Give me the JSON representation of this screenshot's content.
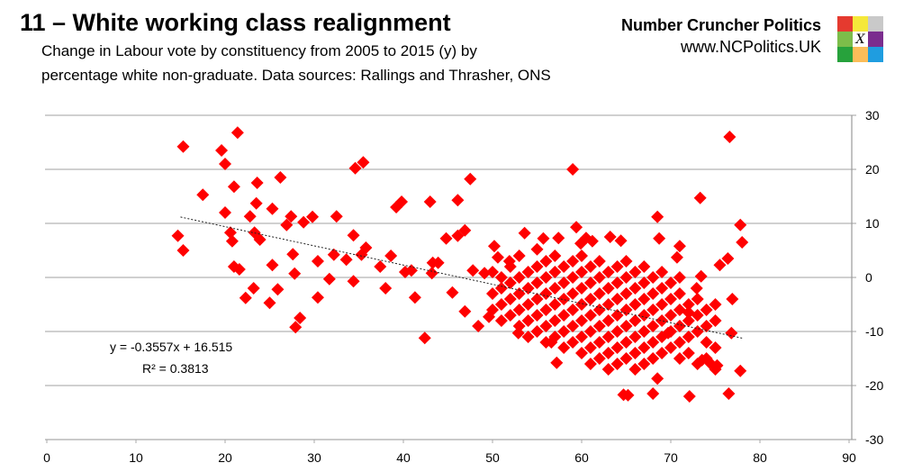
{
  "header": {
    "title": "11 – White working class realignment",
    "subtitle_line1": "Change in Labour vote by constituency from 2005 to 2015 (y) by",
    "subtitle_line2": "percentage white non-graduate. Data sources: Rallings and Thrasher, ONS"
  },
  "brand": {
    "name": "Number Cruncher Politics",
    "url": "www.NCPolitics.UK",
    "logo_mark": "X",
    "logo_colors": [
      "#e53a2f",
      "#f5e83a",
      "#c9c9c9",
      "#7cbd4a",
      "#ffffff",
      "#7b2d8e",
      "#27a23c",
      "#fbbd59",
      "#1f9de0"
    ]
  },
  "chart_data": {
    "type": "scatter",
    "xlim": [
      0,
      90
    ],
    "ylim": [
      -30,
      30
    ],
    "x_ticks": [
      "0",
      "10",
      "20",
      "30",
      "40",
      "50",
      "60",
      "70",
      "80",
      "90"
    ],
    "y_ticks": [
      "30",
      "20",
      "10",
      "0",
      "-10",
      "-20",
      "-30"
    ],
    "y_axis_side": "right",
    "grid": "horizontal",
    "marker": "diamond",
    "marker_color": "#ff0000",
    "trendline": {
      "slope": -0.3557,
      "intercept": 16.515,
      "x_range": [
        15,
        78
      ],
      "equation": "y = -0.3557x + 16.515",
      "r_squared": "R² = 0.3813",
      "style": "dotted"
    },
    "points": [
      [
        14.7,
        7.7
      ],
      [
        15.3,
        5
      ],
      [
        15.3,
        24.2
      ],
      [
        17.5,
        15.3
      ],
      [
        19.6,
        23.5
      ],
      [
        20,
        21
      ],
      [
        21.4,
        26.8
      ],
      [
        20,
        12
      ],
      [
        21,
        16.8
      ],
      [
        20.6,
        8.3
      ],
      [
        20.8,
        6.7
      ],
      [
        21,
        2
      ],
      [
        21.6,
        1.5
      ],
      [
        22.3,
        -3.8
      ],
      [
        23.2,
        -2
      ],
      [
        22.8,
        11.3
      ],
      [
        23.6,
        17.5
      ],
      [
        23.5,
        13.7
      ],
      [
        23.3,
        8.3
      ],
      [
        23.9,
        7
      ],
      [
        25.3,
        2.3
      ],
      [
        25,
        -4.7
      ],
      [
        25.3,
        12.7
      ],
      [
        26.2,
        18.5
      ],
      [
        25.9,
        -2.2
      ],
      [
        26.9,
        9.7
      ],
      [
        27.4,
        11.3
      ],
      [
        27.6,
        4.3
      ],
      [
        27.8,
        0.7
      ],
      [
        27.9,
        -9.2
      ],
      [
        28.4,
        -7.5
      ],
      [
        28.8,
        10.2
      ],
      [
        29.8,
        11.2
      ],
      [
        30.4,
        3
      ],
      [
        30.4,
        -3.7
      ],
      [
        31.7,
        -0.3
      ],
      [
        32.5,
        11.3
      ],
      [
        32.2,
        4.2
      ],
      [
        33.6,
        3.3
      ],
      [
        34.4,
        7.8
      ],
      [
        34.4,
        -0.7
      ],
      [
        34.6,
        20.2
      ],
      [
        35.5,
        21.3
      ],
      [
        35.3,
        4.2
      ],
      [
        35.8,
        5.5
      ],
      [
        37.4,
        2
      ],
      [
        38,
        -2
      ],
      [
        38.6,
        4
      ],
      [
        39.2,
        13
      ],
      [
        39.8,
        14
      ],
      [
        40.2,
        1
      ],
      [
        40.9,
        1.3
      ],
      [
        41.3,
        -3.7
      ],
      [
        42.4,
        -11.2
      ],
      [
        43,
        14
      ],
      [
        43.3,
        2.7
      ],
      [
        43.2,
        0.8
      ],
      [
        43.9,
        2.7
      ],
      [
        44.8,
        7.2
      ],
      [
        45.5,
        -2.8
      ],
      [
        46.1,
        14.3
      ],
      [
        46.1,
        7.7
      ],
      [
        46.9,
        8.7
      ],
      [
        46.9,
        -6.3
      ],
      [
        47.5,
        18.2
      ],
      [
        47.8,
        1.3
      ],
      [
        48.4,
        -9
      ],
      [
        49.1,
        0.8
      ],
      [
        49.6,
        -7.3
      ],
      [
        50.2,
        5.8
      ],
      [
        50.6,
        3.7
      ],
      [
        51.9,
        3
      ],
      [
        52.9,
        -10.3
      ],
      [
        53.6,
        8.2
      ],
      [
        55,
        5.2
      ],
      [
        55.7,
        7.2
      ],
      [
        56.6,
        -12
      ],
      [
        57.2,
        -15.8
      ],
      [
        57.4,
        7.3
      ],
      [
        59,
        20
      ],
      [
        59.4,
        9.3
      ],
      [
        60.5,
        7.3
      ],
      [
        61.2,
        6.7
      ],
      [
        59.9,
        6.3
      ],
      [
        63.2,
        7.5
      ],
      [
        64.4,
        6.8
      ],
      [
        65.2,
        -21.8
      ],
      [
        64.7,
        -21.7
      ],
      [
        68.5,
        11.2
      ],
      [
        68.7,
        7.2
      ],
      [
        68,
        -21.5
      ],
      [
        72.1,
        -22
      ],
      [
        73.3,
        14.7
      ],
      [
        70.7,
        3.7
      ],
      [
        71,
        5.8
      ],
      [
        76.6,
        26
      ],
      [
        77.8,
        9.7
      ],
      [
        78,
        6.5
      ],
      [
        77.8,
        -17.3
      ],
      [
        76.5,
        -21.5
      ],
      [
        76.4,
        3.5
      ],
      [
        75.5,
        2.3
      ],
      [
        76.9,
        -4
      ],
      [
        76.8,
        -10.3
      ],
      [
        72.9,
        -2
      ],
      [
        73.4,
        0.2
      ],
      [
        72,
        -6.5
      ],
      [
        68.5,
        -18.7
      ],
      [
        69.7,
        -10.3
      ],
      [
        75.2,
        -16.3
      ],
      [
        74.5,
        -16
      ],
      [
        73.5,
        -15.3
      ],
      [
        50,
        -3
      ],
      [
        50,
        -6
      ],
      [
        50,
        1
      ],
      [
        51,
        -2
      ],
      [
        51,
        -5
      ],
      [
        51,
        -8
      ],
      [
        51,
        0
      ],
      [
        52,
        -1
      ],
      [
        52,
        -4
      ],
      [
        52,
        -7
      ],
      [
        52,
        2
      ],
      [
        53,
        -3
      ],
      [
        53,
        -6
      ],
      [
        53,
        -9
      ],
      [
        53,
        0
      ],
      [
        53,
        4
      ],
      [
        54,
        -2
      ],
      [
        54,
        -5
      ],
      [
        54,
        -8
      ],
      [
        54,
        -11
      ],
      [
        54,
        1
      ],
      [
        55,
        -1
      ],
      [
        55,
        -4
      ],
      [
        55,
        -7
      ],
      [
        55,
        -10
      ],
      [
        55,
        2
      ],
      [
        56,
        -3
      ],
      [
        56,
        -6
      ],
      [
        56,
        -9
      ],
      [
        56,
        -12
      ],
      [
        56,
        0
      ],
      [
        56,
        3
      ],
      [
        57,
        -2
      ],
      [
        57,
        -5
      ],
      [
        57,
        -8
      ],
      [
        57,
        -11
      ],
      [
        57,
        1
      ],
      [
        57,
        4
      ],
      [
        58,
        -1
      ],
      [
        58,
        -4
      ],
      [
        58,
        -7
      ],
      [
        58,
        -10
      ],
      [
        58,
        -13
      ],
      [
        58,
        2
      ],
      [
        59,
        -3
      ],
      [
        59,
        -6
      ],
      [
        59,
        -9
      ],
      [
        59,
        -12
      ],
      [
        59,
        0
      ],
      [
        59,
        3
      ],
      [
        60,
        -2
      ],
      [
        60,
        -5
      ],
      [
        60,
        -8
      ],
      [
        60,
        -11
      ],
      [
        60,
        -14
      ],
      [
        60,
        1
      ],
      [
        60,
        4
      ],
      [
        61,
        -1
      ],
      [
        61,
        -4
      ],
      [
        61,
        -7
      ],
      [
        61,
        -10
      ],
      [
        61,
        -13
      ],
      [
        61,
        2
      ],
      [
        61,
        -16
      ],
      [
        62,
        -3
      ],
      [
        62,
        -6
      ],
      [
        62,
        -9
      ],
      [
        62,
        -12
      ],
      [
        62,
        -15
      ],
      [
        62,
        0
      ],
      [
        62,
        3
      ],
      [
        63,
        -2
      ],
      [
        63,
        -5
      ],
      [
        63,
        -8
      ],
      [
        63,
        -11
      ],
      [
        63,
        -14
      ],
      [
        63,
        1
      ],
      [
        63,
        -17
      ],
      [
        64,
        -1
      ],
      [
        64,
        -4
      ],
      [
        64,
        -7
      ],
      [
        64,
        -10
      ],
      [
        64,
        -13
      ],
      [
        64,
        -16
      ],
      [
        64,
        2
      ],
      [
        65,
        -3
      ],
      [
        65,
        -6
      ],
      [
        65,
        -9
      ],
      [
        65,
        -12
      ],
      [
        65,
        -15
      ],
      [
        65,
        0
      ],
      [
        65,
        3
      ],
      [
        66,
        -2
      ],
      [
        66,
        -5
      ],
      [
        66,
        -8
      ],
      [
        66,
        -11
      ],
      [
        66,
        -14
      ],
      [
        66,
        -17
      ],
      [
        66,
        1
      ],
      [
        67,
        -1
      ],
      [
        67,
        -4
      ],
      [
        67,
        -7
      ],
      [
        67,
        -10
      ],
      [
        67,
        -13
      ],
      [
        67,
        2
      ],
      [
        67,
        -16
      ],
      [
        68,
        -3
      ],
      [
        68,
        -6
      ],
      [
        68,
        -9
      ],
      [
        68,
        -12
      ],
      [
        68,
        0
      ],
      [
        68,
        -15
      ],
      [
        69,
        -2
      ],
      [
        69,
        -5
      ],
      [
        69,
        -8
      ],
      [
        69,
        -11
      ],
      [
        69,
        1
      ],
      [
        69,
        -14
      ],
      [
        70,
        -4
      ],
      [
        70,
        -7
      ],
      [
        70,
        -10
      ],
      [
        70,
        -13
      ],
      [
        70,
        -1
      ],
      [
        71,
        -3
      ],
      [
        71,
        -6
      ],
      [
        71,
        -9
      ],
      [
        71,
        -12
      ],
      [
        71,
        -15
      ],
      [
        71,
        0
      ],
      [
        72,
        -5
      ],
      [
        72,
        -8
      ],
      [
        72,
        -11
      ],
      [
        72,
        -14
      ],
      [
        73,
        -4
      ],
      [
        73,
        -7
      ],
      [
        73,
        -10
      ],
      [
        73,
        -16
      ],
      [
        74,
        -6
      ],
      [
        74,
        -9
      ],
      [
        74,
        -12
      ],
      [
        74,
        -15
      ],
      [
        75,
        -5
      ],
      [
        75,
        -8
      ],
      [
        75,
        -13
      ],
      [
        75,
        -17
      ]
    ]
  }
}
